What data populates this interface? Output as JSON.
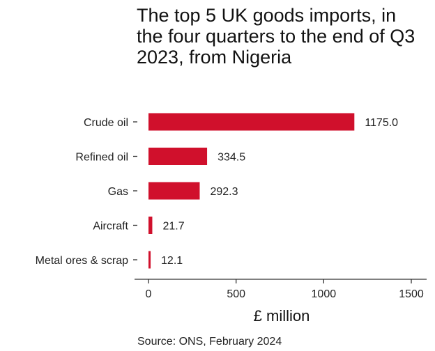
{
  "chart_data": {
    "type": "bar",
    "orientation": "horizontal",
    "title": "The top 5 UK goods imports, in the four quarters to the end of Q3 2023, from Nigeria",
    "categories": [
      "Crude oil",
      "Refined oil",
      "Gas",
      "Aircraft",
      "Metal ores & scrap"
    ],
    "values": [
      1175.0,
      334.5,
      292.3,
      21.7,
      12.1
    ],
    "value_labels": [
      "1175.0",
      "334.5",
      "292.3",
      "21.7",
      "12.1"
    ],
    "xlabel": "£ million",
    "ylabel": "",
    "xlim": [
      0,
      1500
    ],
    "x_ticks": [
      0,
      500,
      1000,
      1500
    ],
    "grid": false,
    "bar_color": "#d0102c",
    "source": "Source: ONS, February 2024"
  }
}
